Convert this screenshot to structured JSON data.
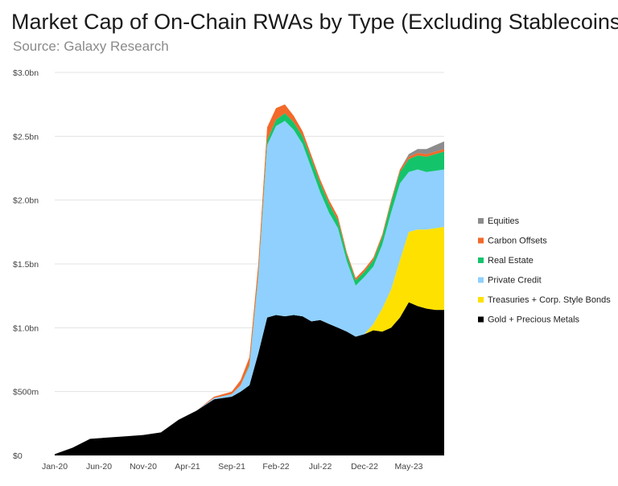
{
  "header": {
    "title": "Market Cap of On-Chain RWAs by Type (Excluding Stablecoins)",
    "source": "Source: Galaxy Research"
  },
  "chart_data": {
    "type": "area",
    "stacked": true,
    "title": "Market Cap of On-Chain RWAs by Type (Excluding Stablecoins)",
    "subtitle": "Source: Galaxy Research",
    "xlabel": "",
    "ylabel": "",
    "ylim": [
      0,
      3.0
    ],
    "y_unit": "USD billions",
    "y_ticks": [
      {
        "value": 0,
        "label": "$0"
      },
      {
        "value": 0.5,
        "label": "$500m"
      },
      {
        "value": 1.0,
        "label": "$1.0bn"
      },
      {
        "value": 1.5,
        "label": "$1.5bn"
      },
      {
        "value": 2.0,
        "label": "$2.0bn"
      },
      {
        "value": 2.5,
        "label": "$2.5bn"
      },
      {
        "value": 3.0,
        "label": "$3.0bn"
      }
    ],
    "x_tick_labels": [
      "Jan-20",
      "Jun-20",
      "Nov-20",
      "Apr-21",
      "Sep-21",
      "Feb-22",
      "Jul-22",
      "Dec-22",
      "May-23"
    ],
    "grid": true,
    "legend_position": "right",
    "x": [
      "2020-01",
      "2020-03",
      "2020-05",
      "2020-07",
      "2020-09",
      "2020-11",
      "2021-01",
      "2021-03",
      "2021-05",
      "2021-07",
      "2021-09",
      "2021-10",
      "2021-11",
      "2021-12",
      "2022-01",
      "2022-02",
      "2022-03",
      "2022-04",
      "2022-05",
      "2022-06",
      "2022-07",
      "2022-08",
      "2022-09",
      "2022-10",
      "2022-11",
      "2022-12",
      "2023-01",
      "2023-02",
      "2023-03",
      "2023-04",
      "2023-05",
      "2023-06",
      "2023-07",
      "2023-08",
      "2023-09"
    ],
    "series": [
      {
        "name": "Gold + Precious Metals",
        "color": "#000000",
        "values": [
          0.01,
          0.06,
          0.13,
          0.14,
          0.15,
          0.16,
          0.18,
          0.28,
          0.35,
          0.44,
          0.46,
          0.5,
          0.55,
          0.8,
          1.08,
          1.1,
          1.09,
          1.1,
          1.09,
          1.05,
          1.06,
          1.03,
          1.0,
          0.97,
          0.93,
          0.95,
          0.98,
          0.97,
          1.0,
          1.08,
          1.2,
          1.17,
          1.15,
          1.14,
          1.14
        ]
      },
      {
        "name": "Treasuries + Corp. Style Bonds",
        "color": "#ffe100",
        "values": [
          0,
          0,
          0,
          0,
          0,
          0,
          0,
          0,
          0,
          0,
          0,
          0,
          0,
          0,
          0,
          0,
          0,
          0,
          0,
          0,
          0,
          0,
          0,
          0,
          0,
          0,
          0.05,
          0.18,
          0.3,
          0.45,
          0.55,
          0.6,
          0.62,
          0.64,
          0.65
        ]
      },
      {
        "name": "Private Credit",
        "color": "#8fd0ff",
        "values": [
          0,
          0,
          0,
          0,
          0,
          0,
          0,
          0,
          0,
          0.01,
          0.02,
          0.05,
          0.15,
          0.6,
          1.35,
          1.48,
          1.53,
          1.45,
          1.35,
          1.2,
          1.0,
          0.87,
          0.78,
          0.55,
          0.4,
          0.45,
          0.45,
          0.5,
          0.6,
          0.6,
          0.47,
          0.47,
          0.45,
          0.45,
          0.45
        ]
      },
      {
        "name": "Real Estate",
        "color": "#14c46b",
        "values": [
          0,
          0,
          0,
          0,
          0,
          0,
          0,
          0,
          0,
          0,
          0,
          0,
          0.01,
          0.02,
          0.04,
          0.05,
          0.06,
          0.06,
          0.06,
          0.07,
          0.07,
          0.07,
          0.06,
          0.05,
          0.04,
          0.04,
          0.05,
          0.06,
          0.08,
          0.09,
          0.1,
          0.11,
          0.12,
          0.13,
          0.14
        ]
      },
      {
        "name": "Carbon Offsets",
        "color": "#f2692a",
        "values": [
          0,
          0,
          0,
          0,
          0,
          0,
          0,
          0,
          0,
          0.01,
          0.02,
          0.04,
          0.06,
          0.08,
          0.1,
          0.09,
          0.07,
          0.05,
          0.04,
          0.03,
          0.03,
          0.03,
          0.03,
          0.02,
          0.02,
          0.02,
          0.02,
          0.02,
          0.02,
          0.02,
          0.02,
          0.02,
          0.02,
          0.02,
          0.02
        ]
      },
      {
        "name": "Equities",
        "color": "#8c8c8c",
        "values": [
          0,
          0,
          0,
          0,
          0,
          0,
          0,
          0,
          0,
          0,
          0,
          0,
          0,
          0,
          0,
          0,
          0,
          0,
          0,
          0,
          0,
          0,
          0,
          0,
          0,
          0,
          0,
          0,
          0,
          0,
          0.02,
          0.03,
          0.04,
          0.05,
          0.06
        ]
      }
    ],
    "legend": [
      "Equities",
      "Carbon Offsets",
      "Real Estate",
      "Private Credit",
      "Treasuries + Corp. Style Bonds",
      "Gold + Precious Metals"
    ]
  }
}
